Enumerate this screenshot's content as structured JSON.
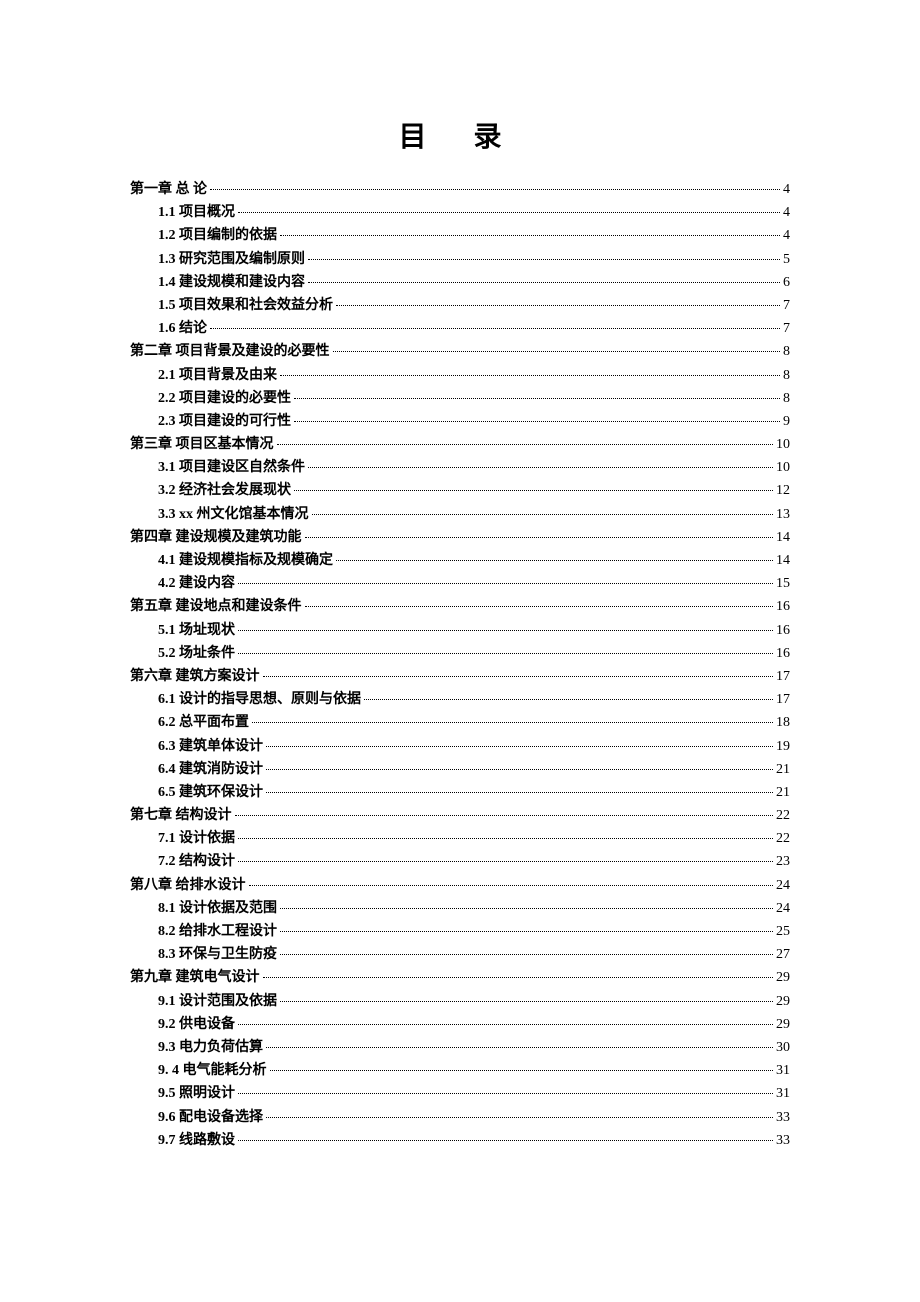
{
  "title": "目  录",
  "text_color": "#000000",
  "background_color": "#ffffff",
  "title_fontsize": 28,
  "body_fontsize": 14,
  "entries": [
    {
      "level": 0,
      "label": "第一章   总   论",
      "page": "4"
    },
    {
      "level": 1,
      "label": "1.1 项目概况",
      "page": "4"
    },
    {
      "level": 1,
      "label": "1.2 项目编制的依据",
      "page": "4"
    },
    {
      "level": 1,
      "label": "1.3 研究范围及编制原则 ",
      "page": "5"
    },
    {
      "level": 1,
      "label": "1.4 建设规模和建设内容 ",
      "page": "6"
    },
    {
      "level": 1,
      "label": "1.5 项目效果和社会效益分析 ",
      "page": "7"
    },
    {
      "level": 1,
      "label": "1.6 结论",
      "page": "7"
    },
    {
      "level": 0,
      "label": "第二章   项目背景及建设的必要性 ",
      "page": "8"
    },
    {
      "level": 1,
      "label": "2.1 项目背景及由来",
      "page": "8"
    },
    {
      "level": 1,
      "label": "2.2 项目建设的必要性",
      "page": "8"
    },
    {
      "level": 1,
      "label": "2.3 项目建设的可行性",
      "page": "9"
    },
    {
      "level": 0,
      "label": "第三章   项目区基本情况 ",
      "page": "10"
    },
    {
      "level": 1,
      "label": "3.1 项目建设区自然条件 ",
      "page": "10"
    },
    {
      "level": 1,
      "label": "3.2 经济社会发展现状",
      "page": "12"
    },
    {
      "level": 1,
      "label": "3.3 xx 州文化馆基本情况",
      "page": "13"
    },
    {
      "level": 0,
      "label": "第四章  建设规模及建筑功能 ",
      "page": "14"
    },
    {
      "level": 1,
      "label": "4.1 建设规模指标及规模确定 ",
      "page": "14"
    },
    {
      "level": 1,
      "label": "4.2 建设内容",
      "page": "15"
    },
    {
      "level": 0,
      "label": "第五章  建设地点和建设条件 ",
      "page": "16"
    },
    {
      "level": 1,
      "label": "5.1 场址现状",
      "page": "16"
    },
    {
      "level": 1,
      "label": "5.2 场址条件",
      "page": "16"
    },
    {
      "level": 0,
      "label": "第六章   建筑方案设计 ",
      "page": "17"
    },
    {
      "level": 1,
      "label": "6.1 设计的指导思想、原则与依据 ",
      "page": "17"
    },
    {
      "level": 1,
      "label": "6.2  总平面布置",
      "page": "18"
    },
    {
      "level": 1,
      "label": "6.3 建筑单体设计",
      "page": "19"
    },
    {
      "level": 1,
      "label": "6.4 建筑消防设计",
      "page": "21"
    },
    {
      "level": 1,
      "label": "6.5 建筑环保设计",
      "page": "21"
    },
    {
      "level": 0,
      "label": "第七章   结构设计",
      "page": "22"
    },
    {
      "level": 1,
      "label": "7.1  设计依据",
      "page": "22"
    },
    {
      "level": 1,
      "label": "7.2 结构设计",
      "page": "23"
    },
    {
      "level": 0,
      "label": "第八章  给排水设计",
      "page": "24"
    },
    {
      "level": 1,
      "label": "8.1 设计依据及范围",
      "page": "24"
    },
    {
      "level": 1,
      "label": "8.2 给排水工程设计",
      "page": "25"
    },
    {
      "level": 1,
      "label": "8.3 环保与卫生防疫",
      "page": "27"
    },
    {
      "level": 0,
      "label": "第九章   建筑电气设计 ",
      "page": "29"
    },
    {
      "level": 1,
      "label": "9.1 设计范围及依据",
      "page": "29"
    },
    {
      "level": 1,
      "label": "9.2 供电设备",
      "page": "29"
    },
    {
      "level": 1,
      "label": "9.3 电力负荷估算",
      "page": "30"
    },
    {
      "level": 1,
      "label": "9. 4 电气能耗分析 ",
      "page": "31"
    },
    {
      "level": 1,
      "label": "9.5 照明设计",
      "page": "31"
    },
    {
      "level": 1,
      "label": "9.6 配电设备选择",
      "page": "33"
    },
    {
      "level": 1,
      "label": "9.7 线路敷设",
      "page": "33"
    }
  ]
}
